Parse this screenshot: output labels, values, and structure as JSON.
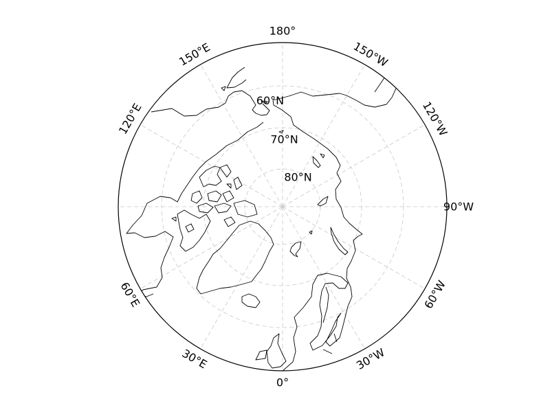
{
  "map": {
    "projection": "north-polar-stereographic",
    "colors": {
      "background": "#ffffff",
      "coastline": "#000000",
      "graticule": "#c8c8c8",
      "frame": "#000000"
    },
    "meridian_labels": [
      {
        "lon": 0,
        "text": "0°"
      },
      {
        "lon": 30,
        "text": "30°E"
      },
      {
        "lon": 60,
        "text": "60°E"
      },
      {
        "lon": 120,
        "text": "120°E"
      },
      {
        "lon": 150,
        "text": "150°E"
      },
      {
        "lon": 180,
        "text": "180°"
      },
      {
        "lon": -150,
        "text": "150°W"
      },
      {
        "lon": -120,
        "text": "120°W"
      },
      {
        "lon": -90,
        "text": "90°W"
      },
      {
        "lon": -60,
        "text": "60°W"
      },
      {
        "lon": -30,
        "text": "30°W"
      }
    ],
    "parallel_labels": [
      {
        "lat": 60,
        "text": "60°N"
      },
      {
        "lat": 70,
        "text": "70°N"
      },
      {
        "lat": 80,
        "text": "80°N"
      }
    ]
  }
}
